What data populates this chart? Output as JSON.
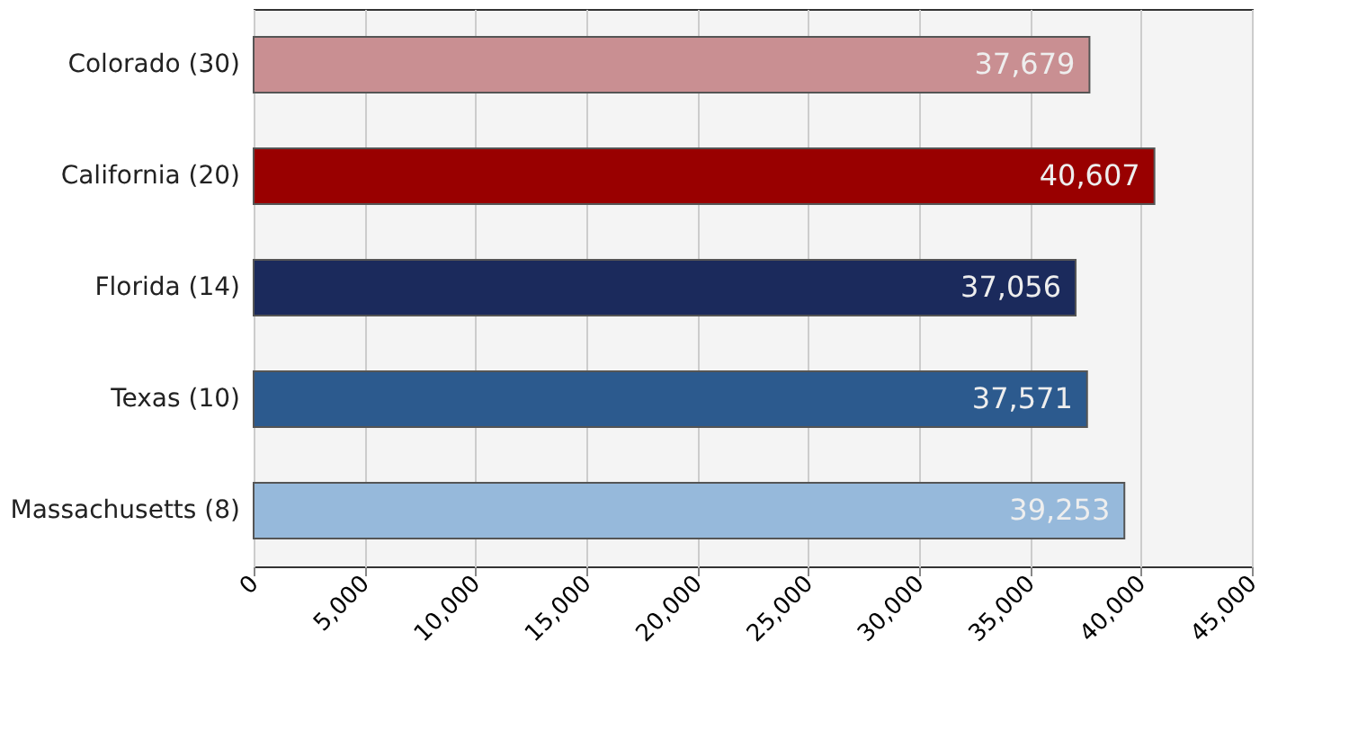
{
  "chart_data": {
    "type": "bar",
    "orientation": "horizontal",
    "categories": [
      "Colorado (30)",
      "California (20)",
      "Florida (14)",
      "Texas (10)",
      "Massachusetts (8)"
    ],
    "values": [
      37679,
      40607,
      37056,
      37571,
      39253
    ],
    "value_labels": [
      "37,679",
      "40,607",
      "37,056",
      "37,571",
      "39,253"
    ],
    "colors": [
      "#c98f92",
      "#990000",
      "#1b2a5c",
      "#2c5a8e",
      "#96b9db"
    ],
    "xlim": [
      0,
      45000
    ],
    "xticks": [
      0,
      {
        "value": 5000,
        "label": "5,000"
      },
      {
        "value": 10000,
        "label": "10,000"
      },
      {
        "value": 15000,
        "label": "15,000"
      },
      {
        "value": 20000,
        "label": "20,000"
      },
      {
        "value": 25000,
        "label": "25,000"
      },
      {
        "value": 30000,
        "label": "30,000"
      },
      {
        "value": 35000,
        "label": "35,000"
      },
      {
        "value": 40000,
        "label": "40,000"
      },
      {
        "value": 45000,
        "label": "45,000"
      }
    ],
    "grid": "x"
  }
}
